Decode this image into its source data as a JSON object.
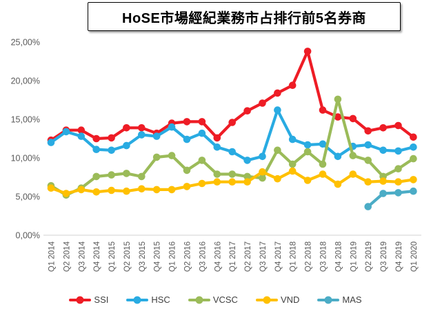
{
  "title": "HoSE市場經紀業務市占排行前5名券商",
  "chart_data": {
    "type": "line",
    "categories": [
      "Q1 2014",
      "Q2 2014",
      "Q3 2014",
      "Q4 2014",
      "Q1 2015",
      "Q2 2015",
      "Q3 2015",
      "Q4 2015",
      "Q1 2016",
      "Q2 2016",
      "Q3 2016",
      "Q4 2016",
      "Q1 2017",
      "Q2 2017",
      "Q3 2017",
      "Q4 2017",
      "Q1 2018",
      "Q2 2018",
      "Q3 2018",
      "Q4 2018",
      "Q1 2019",
      "Q2 2019",
      "Q3 2019",
      "Q4 2019",
      "Q1 2020"
    ],
    "unit": "%",
    "series": [
      {
        "name": "SSI",
        "color": "#EE1C25",
        "values": [
          12.3,
          13.6,
          13.6,
          12.5,
          12.6,
          13.9,
          13.9,
          13.2,
          14.5,
          14.7,
          14.7,
          12.6,
          14.6,
          16.1,
          17.1,
          18.4,
          19.4,
          23.8,
          16.2,
          15.3,
          15.1,
          13.5,
          13.9,
          14.2,
          12.7
        ]
      },
      {
        "name": "HSC",
        "color": "#29ABE2",
        "values": [
          12.0,
          13.4,
          12.8,
          11.1,
          11.0,
          11.6,
          13.0,
          12.8,
          14.0,
          12.4,
          13.2,
          11.4,
          10.8,
          9.7,
          10.2,
          16.2,
          12.4,
          11.7,
          11.8,
          10.2,
          11.5,
          11.7,
          11.0,
          10.9,
          11.4
        ]
      },
      {
        "name": "VCSC",
        "color": "#9BBB59",
        "values": [
          6.4,
          5.2,
          6.1,
          7.6,
          7.8,
          8.0,
          7.6,
          10.1,
          10.3,
          8.4,
          9.7,
          7.9,
          7.9,
          7.6,
          7.4,
          11.0,
          9.2,
          10.8,
          9.2,
          17.6,
          10.3,
          9.7,
          7.6,
          8.6,
          9.9
        ]
      },
      {
        "name": "VND",
        "color": "#FFC000",
        "values": [
          6.1,
          5.4,
          5.9,
          5.6,
          5.8,
          5.7,
          6.0,
          5.9,
          5.9,
          6.3,
          6.7,
          6.9,
          6.9,
          6.9,
          8.2,
          7.3,
          8.3,
          7.1,
          7.9,
          6.6,
          7.9,
          6.9,
          7.0,
          6.9,
          7.2
        ]
      },
      {
        "name": "MAS",
        "color": "#4BACC6",
        "values": [
          null,
          null,
          null,
          null,
          null,
          null,
          null,
          null,
          null,
          null,
          null,
          null,
          null,
          null,
          null,
          null,
          null,
          null,
          null,
          null,
          null,
          3.7,
          5.4,
          5.5,
          5.7
        ]
      }
    ],
    "yticks": [
      {
        "value": 0,
        "label": "0,00%"
      },
      {
        "value": 5,
        "label": "5,00%"
      },
      {
        "value": 10,
        "label": "10,00%"
      },
      {
        "value": 15,
        "label": "15,00%"
      },
      {
        "value": 20,
        "label": "20,00%"
      },
      {
        "value": 25,
        "label": "25,00%"
      }
    ],
    "ylim": [
      0,
      25
    ],
    "grid": false,
    "legend_position": "bottom",
    "axis_color": "#D9D9D9",
    "label_color": "#595959"
  }
}
